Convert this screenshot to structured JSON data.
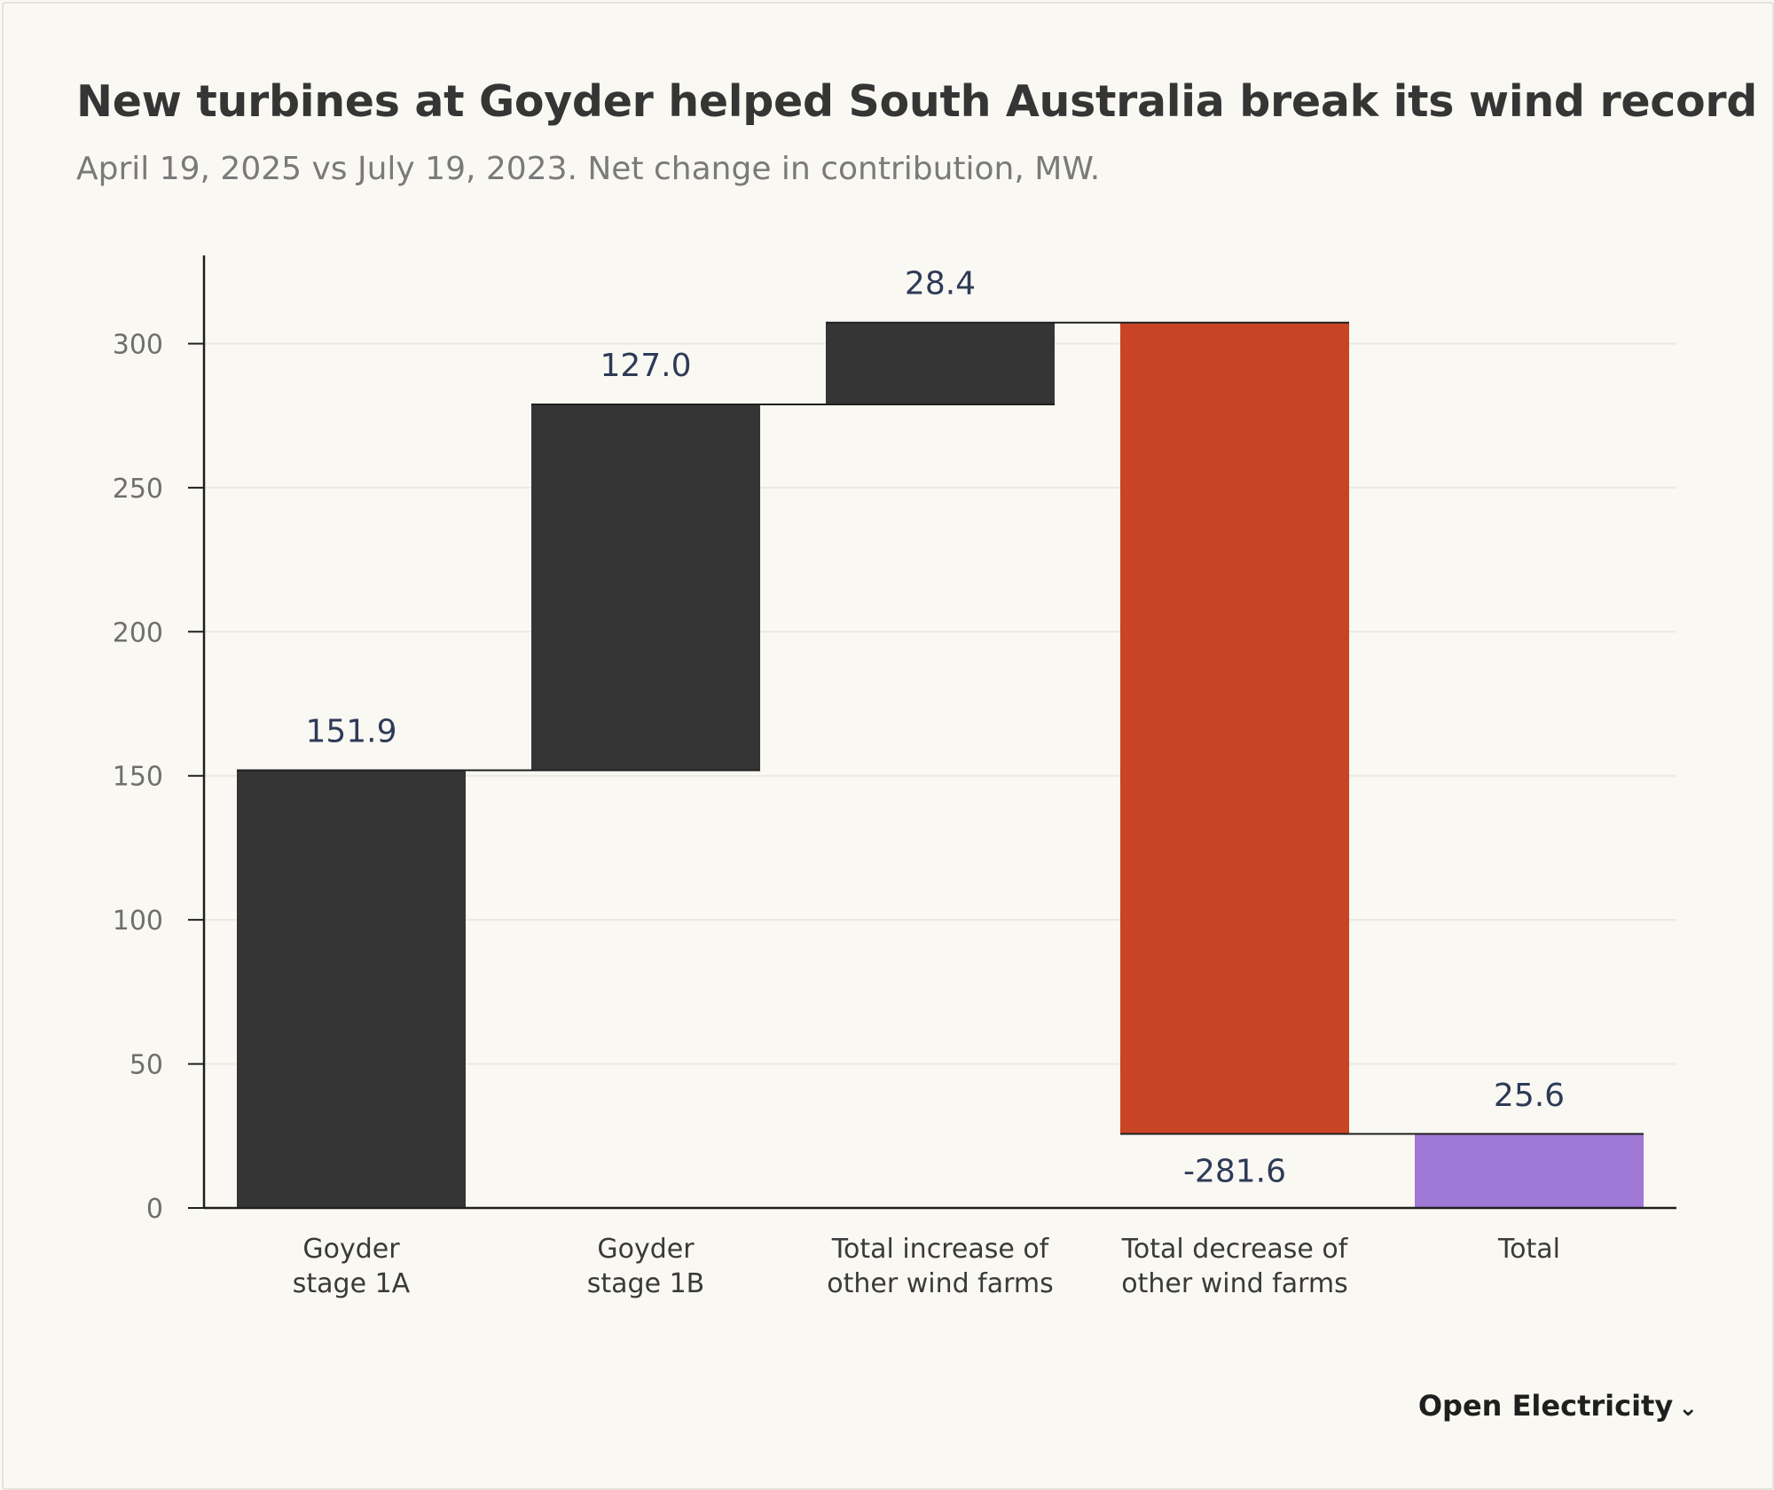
{
  "header": {
    "title": "New turbines at Goyder helped South Australia break its wind record",
    "subtitle": "April 19, 2025 vs July 19, 2023. Net change in contribution, MW."
  },
  "footer": {
    "brand": "Open Electricity",
    "brand_icon": "wave-chevron-icon"
  },
  "colors": {
    "increase": "#353535",
    "decrease": "#c84424",
    "total": "#a078d5",
    "label": "#2e3b57",
    "axis": "#1f1f1f",
    "grid": "#ece9e3"
  },
  "chart_data": {
    "type": "bar",
    "subtype": "waterfall",
    "categories": [
      [
        "Goyder",
        "stage 1A"
      ],
      [
        "Goyder",
        "stage 1B"
      ],
      [
        "Total increase of",
        "other wind farms"
      ],
      [
        "Total decrease of",
        "other wind farms"
      ],
      [
        "Total"
      ]
    ],
    "values": [
      151.9,
      127.0,
      28.4,
      -281.6,
      25.6
    ],
    "value_labels": [
      "151.9",
      "127.0",
      "28.4",
      "-281.6",
      "25.6"
    ],
    "kinds": [
      "increase",
      "increase",
      "increase",
      "decrease",
      "total"
    ],
    "ylim": [
      0,
      330
    ],
    "yticks": [
      0,
      50,
      100,
      150,
      200,
      250,
      300
    ],
    "grid": true,
    "xlabel": "",
    "ylabel": ""
  }
}
